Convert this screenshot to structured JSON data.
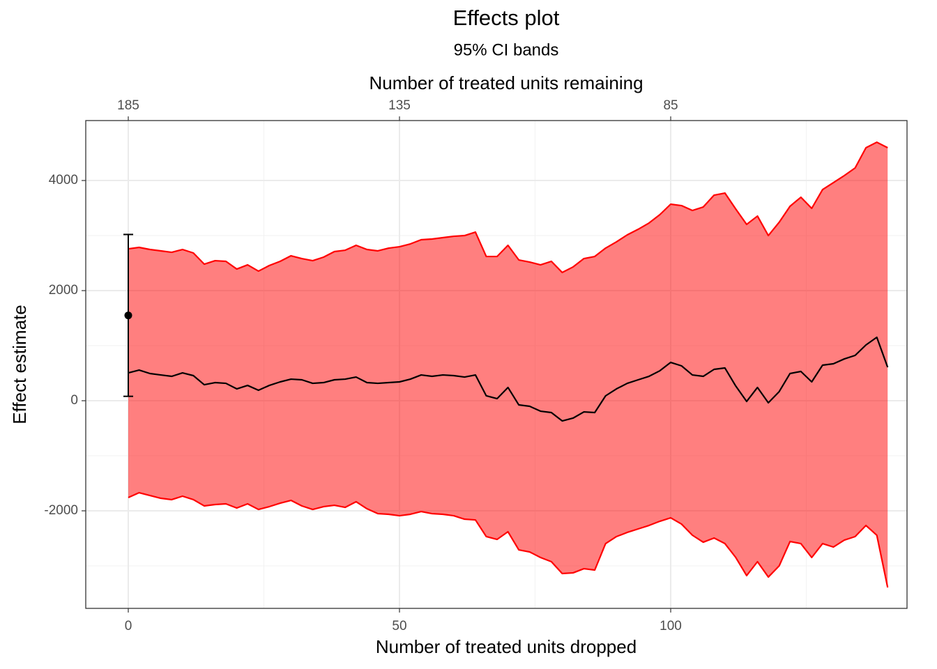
{
  "chart_data": {
    "type": "line",
    "title": "Effects plot",
    "subtitle": "95% CI bands",
    "x_label": "Number of treated units dropped",
    "y_label": "Effect estimate",
    "x2_label": "Number of treated units remaining",
    "x": [
      0,
      2,
      4,
      6,
      8,
      10,
      12,
      14,
      16,
      18,
      20,
      22,
      24,
      26,
      28,
      30,
      32,
      34,
      36,
      38,
      40,
      42,
      44,
      46,
      48,
      50,
      52,
      54,
      56,
      58,
      60,
      62,
      64,
      66,
      68,
      70,
      72,
      74,
      76,
      78,
      80,
      82,
      84,
      86,
      88,
      90,
      92,
      94,
      96,
      98,
      100,
      102,
      104,
      106,
      108,
      110,
      112,
      114,
      116,
      118,
      120,
      122,
      124,
      126,
      128,
      130,
      132,
      134,
      136,
      138,
      140
    ],
    "series": [
      {
        "color": "#000000",
        "values": [
          506,
          557,
          494,
          468,
          443,
          506,
          456,
          291,
          329,
          316,
          215,
          278,
          190,
          278,
          342,
          392,
          380,
          316,
          329,
          380,
          392,
          430,
          329,
          316,
          329,
          342,
          392,
          468,
          443,
          468,
          456,
          430,
          468,
          89,
          38,
          241,
          -76,
          -101,
          -190,
          -215,
          -367,
          -316,
          -203,
          -215,
          89,
          215,
          316,
          380,
          443,
          544,
          696,
          633,
          468,
          443,
          570,
          595,
          266,
          -13,
          241,
          -38,
          165,
          494,
          532,
          342,
          646,
          671,
          759,
          823,
          1013,
          1152,
          608
        ]
      }
    ],
    "ribbon": {
      "color": "#ff0000",
      "alpha": 0.5,
      "upper": [
        2759,
        2785,
        2747,
        2722,
        2696,
        2747,
        2684,
        2481,
        2544,
        2532,
        2392,
        2468,
        2354,
        2456,
        2532,
        2633,
        2582,
        2544,
        2608,
        2709,
        2734,
        2823,
        2747,
        2722,
        2772,
        2797,
        2848,
        2924,
        2937,
        2962,
        2987,
        3000,
        3063,
        2620,
        2620,
        2823,
        2557,
        2519,
        2468,
        2532,
        2329,
        2430,
        2582,
        2620,
        2772,
        2886,
        3013,
        3114,
        3228,
        3380,
        3570,
        3544,
        3456,
        3519,
        3734,
        3772,
        3481,
        3203,
        3354,
        3000,
        3241,
        3532,
        3696,
        3494,
        3835,
        3962,
        4089,
        4228,
        4595,
        4696,
        4595
      ],
      "lower": [
        -1759,
        -1671,
        -1722,
        -1772,
        -1797,
        -1734,
        -1797,
        -1911,
        -1886,
        -1873,
        -1949,
        -1873,
        -1975,
        -1924,
        -1861,
        -1810,
        -1911,
        -1975,
        -1924,
        -1899,
        -1937,
        -1835,
        -1962,
        -2051,
        -2063,
        -2089,
        -2063,
        -2013,
        -2051,
        -2063,
        -2089,
        -2152,
        -2165,
        -2468,
        -2519,
        -2380,
        -2709,
        -2747,
        -2848,
        -2924,
        -3139,
        -3127,
        -3051,
        -3076,
        -2595,
        -2468,
        -2392,
        -2329,
        -2266,
        -2190,
        -2127,
        -2241,
        -2443,
        -2570,
        -2494,
        -2595,
        -2848,
        -3177,
        -2924,
        -3203,
        -3000,
        -2557,
        -2595,
        -2848,
        -2595,
        -2658,
        -2532,
        -2468,
        -2266,
        -2443,
        -3392
      ]
    },
    "point": {
      "x": 0,
      "y": 1550,
      "lower": 80,
      "upper": 3020,
      "color": "#000000"
    },
    "xlim": [
      -7.84,
      143.57
    ],
    "xticks": [
      0,
      50,
      100
    ],
    "x_minor_ticks": [
      25,
      75,
      125
    ],
    "x2lim": [
      192.84,
      41.43
    ],
    "x2ticks": [
      185,
      135,
      85
    ],
    "ylim": [
      -3772,
      5089
    ],
    "yticks": [
      -2000,
      0,
      2000,
      4000
    ],
    "y_minor_ticks": [
      -3000,
      -1000,
      1000,
      3000
    ],
    "grid": true
  }
}
